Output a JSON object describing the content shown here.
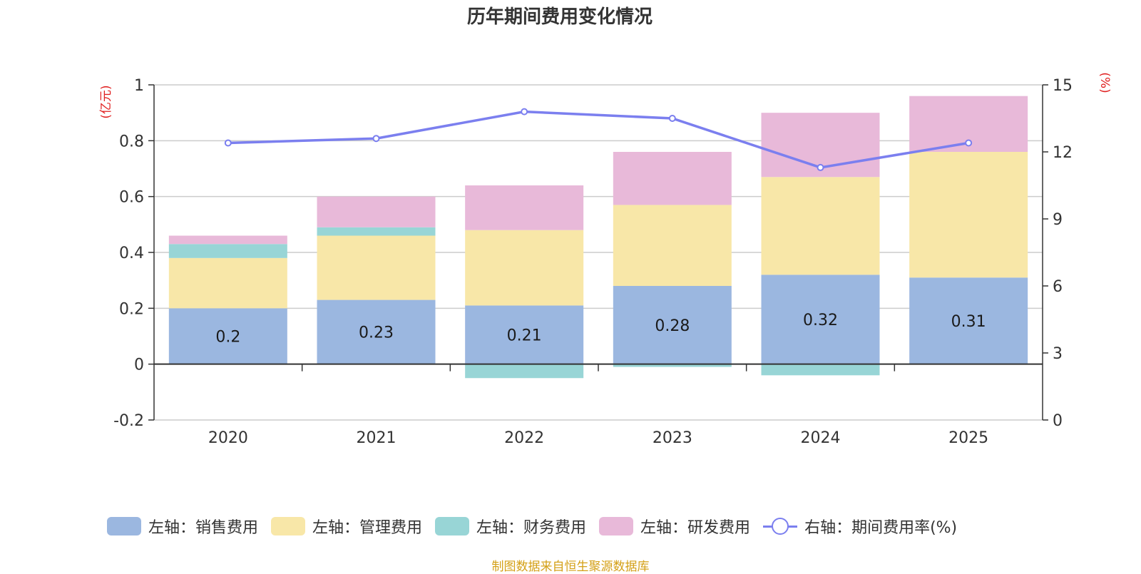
{
  "chart_data": {
    "type": "bar+line",
    "title": "历年期间费用变化情况",
    "categories": [
      "2020",
      "2021",
      "2022",
      "2023",
      "2024",
      "2025"
    ],
    "left_axis": {
      "unit": "(亿元)",
      "ylim": [
        -0.2,
        1
      ],
      "ticks": [
        1,
        0.8,
        0.6,
        0.4,
        0.2,
        0,
        -0.2
      ],
      "tick_labels": [
        "1",
        "0.8",
        "0.6",
        "0.4",
        "0.2",
        "0",
        "-0.2"
      ]
    },
    "right_axis": {
      "unit": "(%)",
      "ylim": [
        0,
        15
      ],
      "ticks": [
        15,
        12,
        9,
        6,
        3,
        0
      ],
      "tick_labels": [
        "15",
        "12",
        "9",
        "6",
        "3",
        "0"
      ]
    },
    "series": [
      {
        "name": "左轴：销售费用",
        "axis": "left",
        "kind": "bar",
        "color": "#9bb7e0",
        "values": [
          0.2,
          0.23,
          0.21,
          0.28,
          0.32,
          0.31
        ],
        "labels": [
          "0.2",
          "0.23",
          "0.21",
          "0.28",
          "0.32",
          "0.31"
        ]
      },
      {
        "name": "左轴：管理费用",
        "axis": "left",
        "kind": "bar",
        "color": "#f8e7a8",
        "values": [
          0.18,
          0.23,
          0.27,
          0.29,
          0.35,
          0.45
        ]
      },
      {
        "name": "左轴：财务费用",
        "axis": "left",
        "kind": "bar",
        "color": "#98d5d6",
        "values": [
          0.05,
          0.03,
          -0.05,
          -0.01,
          -0.04,
          0.0
        ]
      },
      {
        "name": "左轴：研发费用",
        "axis": "left",
        "kind": "bar",
        "color": "#e8b9d9",
        "values": [
          0.03,
          0.11,
          0.16,
          0.19,
          0.23,
          0.2
        ]
      },
      {
        "name": "右轴：期间费用率(%)",
        "axis": "right",
        "kind": "line",
        "color": "#7b7fef",
        "values": [
          12.4,
          12.6,
          13.8,
          13.5,
          11.3,
          12.4
        ]
      }
    ],
    "grid": true,
    "legend_position": "bottom"
  },
  "colors": {
    "axis_unit": "#e02020",
    "source": "#d4a017"
  },
  "source_text": "制图数据来自恒生聚源数据库"
}
